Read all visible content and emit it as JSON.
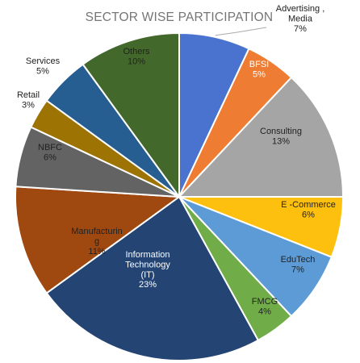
{
  "chart_data": {
    "type": "pie",
    "title": "SECTOR WISE PARTICIPATION",
    "slices": [
      {
        "label_lines": [
          "Advertising ,",
          "Media"
        ],
        "value": 7,
        "value_label": "7%",
        "color": "#4a72cf"
      },
      {
        "label_lines": [
          "BFSI"
        ],
        "value": 5,
        "value_label": "5%",
        "color": "#ee7d33"
      },
      {
        "label_lines": [
          "Consulting"
        ],
        "value": 13,
        "value_label": "13%",
        "color": "#a5a5a5"
      },
      {
        "label_lines": [
          "E -Commerce"
        ],
        "value": 6,
        "value_label": "6%",
        "color": "#fec00f"
      },
      {
        "label_lines": [
          "EduTech"
        ],
        "value": 7,
        "value_label": "7%",
        "color": "#5c9bd5"
      },
      {
        "label_lines": [
          "FMCG"
        ],
        "value": 4,
        "value_label": "4%",
        "color": "#70ad48"
      },
      {
        "label_lines": [
          "Information",
          "Technology",
          "(IT)"
        ],
        "value": 23,
        "value_label": "23%",
        "color": "#244473"
      },
      {
        "label_lines": [
          "Manufacturin",
          "g"
        ],
        "value": 11,
        "value_label": "11%",
        "color": "#9f480f"
      },
      {
        "label_lines": [
          "NBFC"
        ],
        "value": 6,
        "value_label": "6%",
        "color": "#636363"
      },
      {
        "label_lines": [
          "Retail"
        ],
        "value": 3,
        "value_label": "3%",
        "color": "#9d7404"
      },
      {
        "label_lines": [
          "Services"
        ],
        "value": 5,
        "value_label": "5%",
        "color": "#275e92"
      },
      {
        "label_lines": [
          "Others"
        ],
        "value": 10,
        "value_label": "10%",
        "color": "#43682b"
      }
    ]
  }
}
